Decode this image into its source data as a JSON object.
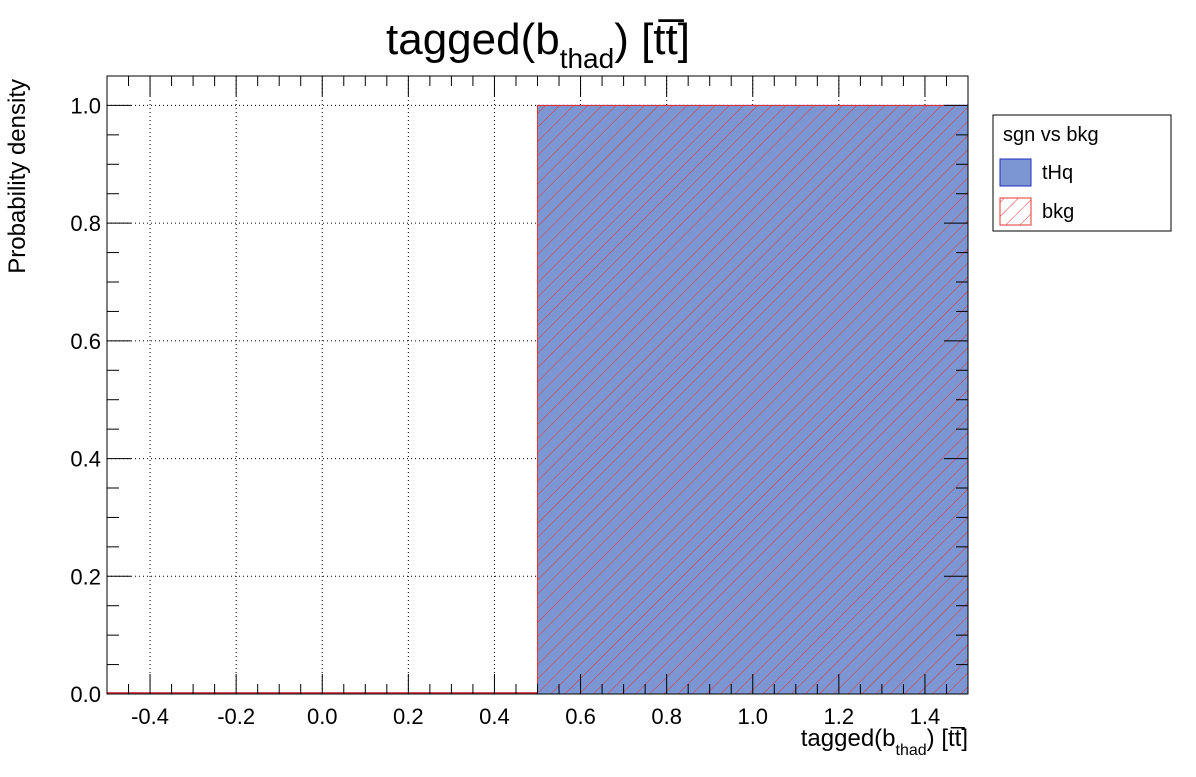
{
  "chart_data": {
    "type": "bar",
    "title": "tagged(b",
    "title_sub": "thad",
    "title_suffix": ") [tt̅]",
    "xlabel": "tagged(b",
    "xlabel_sub": "thad",
    "xlabel_suffix": ") [tt̅]",
    "ylabel": "Probability density",
    "xlim": [
      -0.5,
      1.5
    ],
    "ylim": [
      0,
      1.05
    ],
    "xticks": [
      "-0.4",
      "-0.2",
      "0.0",
      "0.2",
      "0.4",
      "0.6",
      "0.8",
      "1.0",
      "1.2",
      "1.4"
    ],
    "yticks": [
      "0.0",
      "0.2",
      "0.4",
      "0.6",
      "0.8",
      "1.0"
    ],
    "grid": true,
    "bins": [
      {
        "x_low": -0.5,
        "x_high": 0.5
      },
      {
        "x_low": 0.5,
        "x_high": 1.5
      }
    ],
    "series": [
      {
        "name": "tHq",
        "values": [
          0.0,
          1.0
        ],
        "fill": "#7b96d2",
        "edge": "#1f2fbf",
        "style": "solid"
      },
      {
        "name": "bkg",
        "values": [
          0.0,
          1.0
        ],
        "fill": "none",
        "edge": "#e8342f",
        "style": "hatch"
      }
    ],
    "legend": {
      "title": "sgn vs bkg",
      "position": "top-right-outside"
    }
  }
}
